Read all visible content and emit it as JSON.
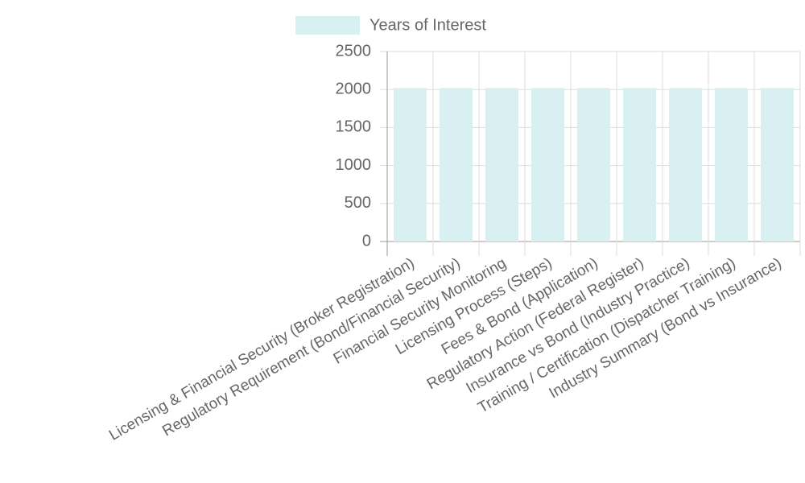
{
  "chart_data": {
    "type": "bar",
    "categories": [
      "Licensing & Financial Security (Broker Registration)",
      "Regulatory Requirement (Bond/Financial Security)",
      "Financial Security Monitoring",
      "Licensing Process (Steps)",
      "Fees & Bond (Application)",
      "Regulatory Action (Federal Register)",
      "Insurance vs Bond (Industry Practice)",
      "Training / Certification (Dispatcher Training)",
      "Industry Summary (Bond vs Insurance)"
    ],
    "series": [
      {
        "name": "Years of Interest",
        "color": "#d9f0f2",
        "values": [
          2020,
          2020,
          2020,
          2020,
          2020,
          2020,
          2020,
          2020,
          2020
        ]
      }
    ],
    "ylim": [
      0,
      2500
    ],
    "yticks": [
      0,
      500,
      1000,
      1500,
      2000,
      2500
    ],
    "grid": true,
    "legend": "top"
  }
}
